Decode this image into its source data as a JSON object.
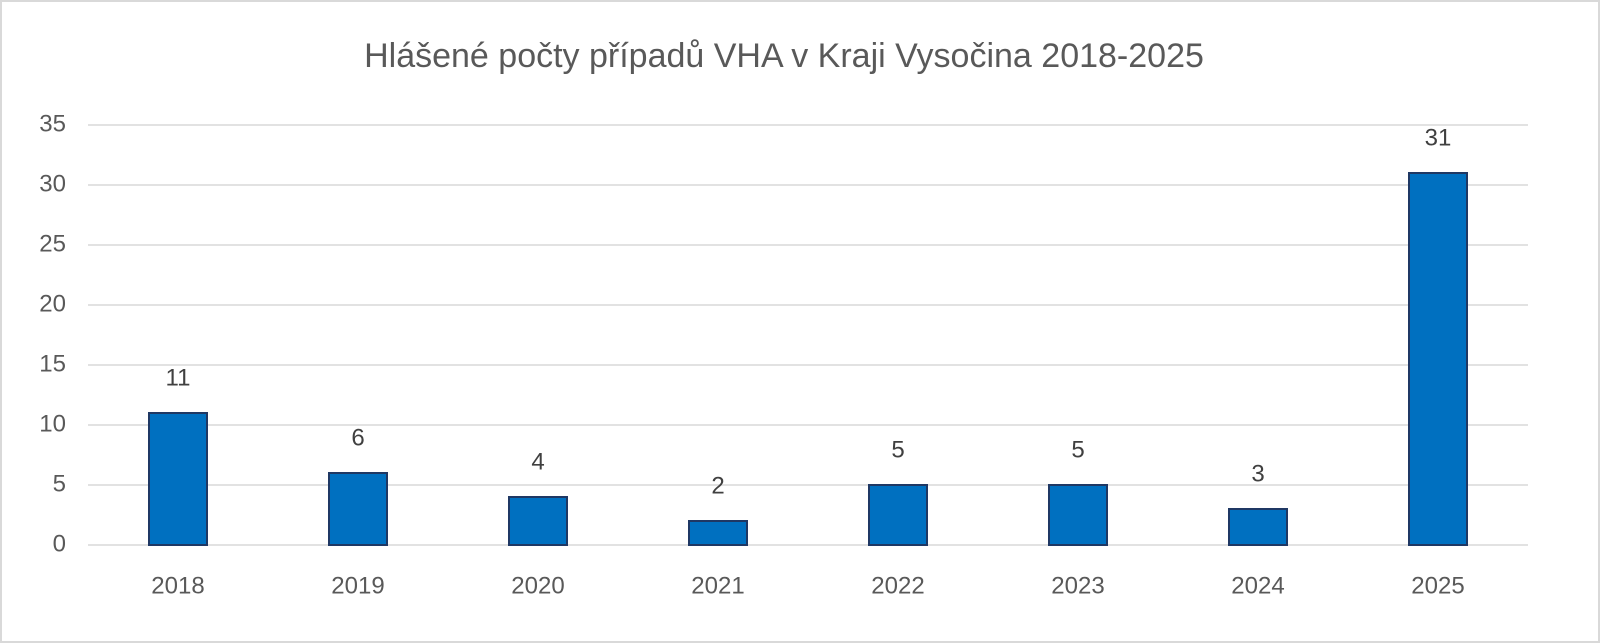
{
  "chart_data": {
    "type": "bar",
    "title": "Hlášené počty případů VHA v Kraji Vysočina 2018-2025",
    "categories": [
      "2018",
      "2019",
      "2020",
      "2021",
      "2022",
      "2023",
      "2024",
      "2025"
    ],
    "values": [
      11,
      6,
      4,
      2,
      5,
      5,
      3,
      31
    ],
    "color": "#0070c0",
    "edge_color": "#1f3864",
    "ylim": [
      0,
      35
    ],
    "yticks": [
      0,
      5,
      10,
      15,
      20,
      25,
      30,
      35
    ],
    "grid": true
  }
}
